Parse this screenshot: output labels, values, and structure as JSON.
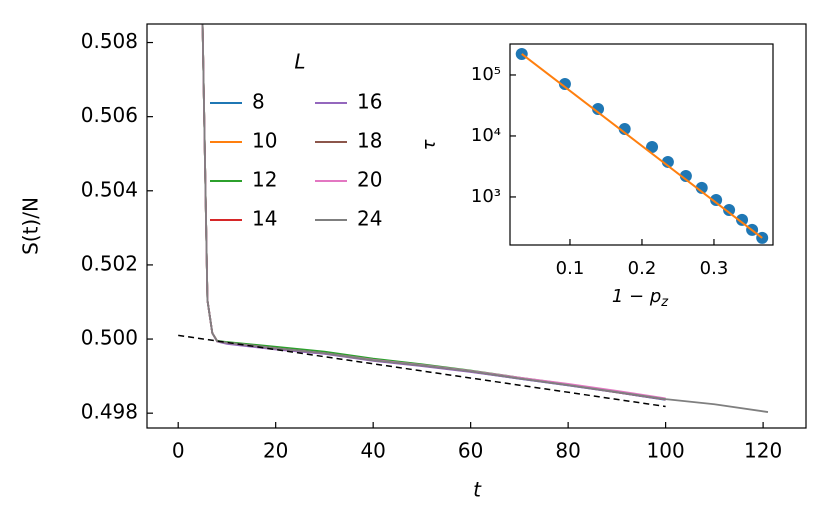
{
  "chart_data": [
    {
      "type": "line",
      "x_label": "t",
      "y_label": "S(t)/N",
      "legend_title": "L",
      "x": [
        5,
        6,
        7,
        8,
        10,
        20,
        30,
        40,
        50,
        60,
        70,
        80,
        90,
        100,
        110,
        121
      ],
      "series": [
        {
          "name": "8",
          "color": "#1f77b4",
          "values": [
            0.5085,
            0.50105,
            0.50016,
            0.49994,
            0.49989,
            0.49974,
            0.49962,
            0.49942,
            0.49928,
            0.49912,
            0.49893,
            0.49875,
            0.49856,
            0.49836,
            null,
            null
          ]
        },
        {
          "name": "10",
          "color": "#ff7f0e",
          "values": [
            0.5085,
            0.50105,
            0.50016,
            0.49994,
            0.4999,
            0.49976,
            0.49963,
            0.49944,
            0.4993,
            0.49913,
            0.49894,
            0.49877,
            0.49857,
            0.49837,
            null,
            null
          ]
        },
        {
          "name": "12",
          "color": "#2ca02c",
          "values": [
            0.5085,
            0.50105,
            0.50016,
            0.49995,
            0.49992,
            0.49979,
            0.49966,
            0.49947,
            0.49932,
            0.49915,
            0.49896,
            0.49878,
            0.49858,
            0.49838,
            null,
            null
          ]
        },
        {
          "name": "14",
          "color": "#d62728",
          "values": [
            0.5085,
            0.50105,
            0.50016,
            0.49994,
            0.49989,
            0.49975,
            0.49961,
            0.49943,
            0.49929,
            0.49912,
            0.49894,
            0.49876,
            0.49856,
            0.49837,
            null,
            null
          ]
        },
        {
          "name": "16",
          "color": "#9467bd",
          "values": [
            0.5085,
            0.50105,
            0.50016,
            0.49993,
            0.49987,
            0.49972,
            0.4996,
            0.49941,
            0.49927,
            0.49911,
            0.49893,
            0.49875,
            0.49856,
            0.49837,
            null,
            null
          ]
        },
        {
          "name": "18",
          "color": "#8c564b",
          "values": [
            0.5085,
            0.50105,
            0.50016,
            0.49994,
            0.4999,
            0.49975,
            0.49962,
            0.49943,
            0.49929,
            0.49913,
            0.49894,
            0.49876,
            0.49857,
            0.49838,
            null,
            null
          ]
        },
        {
          "name": "20",
          "color": "#e377c2",
          "values": [
            0.5085,
            0.50105,
            0.50016,
            0.49994,
            0.4999,
            0.49975,
            0.49962,
            0.49944,
            0.4993,
            0.49914,
            0.49896,
            0.49879,
            0.4986,
            0.4984,
            null,
            null
          ]
        },
        {
          "name": "24",
          "color": "#7f7f7f",
          "values": [
            0.5085,
            0.50105,
            0.50016,
            0.49994,
            0.4999,
            0.49975,
            0.49962,
            0.49943,
            0.49929,
            0.49913,
            0.49894,
            0.49876,
            0.49857,
            0.49838,
            0.49824,
            0.49803
          ]
        }
      ],
      "reference_line": {
        "x": [
          0,
          100
        ],
        "values": [
          0.5001,
          0.49818
        ],
        "color": "#000000"
      },
      "xlim": [
        -6.4,
        128.8
      ],
      "ylim": [
        0.4976,
        0.5085
      ],
      "xticks": [
        0,
        20,
        40,
        60,
        80,
        100,
        120
      ],
      "yticks": [
        0.498,
        {
          "value": 0.5,
          "label": "0.500"
        },
        0.502,
        0.504,
        0.506,
        0.508
      ]
    },
    {
      "type": "scatter",
      "x_label": "1 − p",
      "x_label_sub": "z",
      "y_label": "τ",
      "log_y": true,
      "x": [
        0.033,
        0.093,
        0.139,
        0.176,
        0.214,
        0.236,
        0.261,
        0.283,
        0.303,
        0.321,
        0.339,
        0.353,
        0.367
      ],
      "values": [
        221000,
        71100,
        27700,
        13000,
        6600,
        3750,
        2210,
        1410,
        893,
        612,
        420,
        288,
        213
      ],
      "color": "#1f77b4",
      "fit": {
        "x": [
          0.033,
          0.367
        ],
        "values": [
          221000,
          213
        ],
        "color": "#ff7f0e"
      },
      "xlim": [
        0.0167,
        0.382
      ],
      "ylim": [
        163,
        322000
      ],
      "xticks": [
        0.1,
        0.2,
        0.3
      ],
      "yticks": [
        {
          "value": 1000,
          "label": "10³"
        },
        {
          "value": 10000,
          "label": "10⁴"
        },
        {
          "value": 100000,
          "label": "10⁵"
        }
      ]
    }
  ]
}
